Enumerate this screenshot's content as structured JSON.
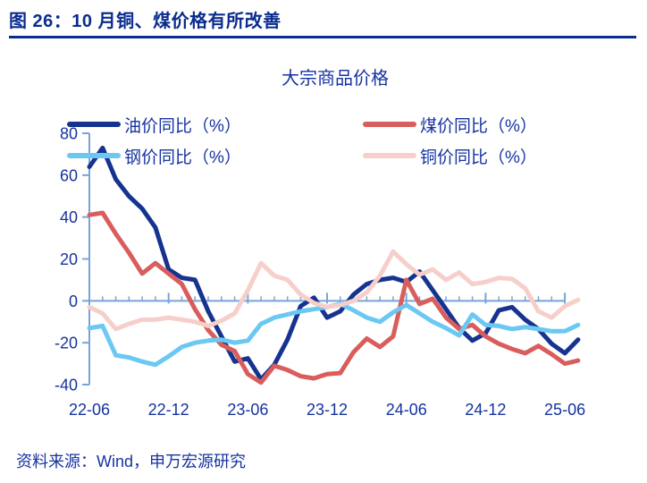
{
  "header": {
    "title": "图 26：10 月铜、煤价格有所改善"
  },
  "footer": {
    "source": "资料来源：Wind，申万宏源研究"
  },
  "colors": {
    "header_text": "#0a2c8f",
    "body_text": "#1633a0",
    "axis": "#78a4d9"
  },
  "chart_data": {
    "type": "line",
    "title": "大宗商品价格",
    "xlabel": "",
    "ylabel": "",
    "ylim": [
      -40,
      80
    ],
    "y_ticks": [
      80,
      60,
      40,
      20,
      0,
      -20,
      -40
    ],
    "grid": false,
    "legend_position": "top",
    "x_tick_labels": [
      "22-06",
      "22-12",
      "23-06",
      "23-12",
      "24-06",
      "24-12",
      "25-06"
    ],
    "x_tick_every": 6,
    "x": [
      "22-06",
      "22-07",
      "22-08",
      "22-09",
      "22-10",
      "22-11",
      "22-12",
      "23-01",
      "23-02",
      "23-03",
      "23-04",
      "23-05",
      "23-06",
      "23-07",
      "23-08",
      "23-09",
      "23-10",
      "23-11",
      "23-12",
      "24-01",
      "24-02",
      "24-03",
      "24-04",
      "24-05",
      "24-06",
      "24-07",
      "24-08",
      "24-09",
      "24-10",
      "24-11",
      "24-12",
      "25-01",
      "25-02",
      "25-03",
      "25-04",
      "25-05",
      "25-06",
      "25-07"
    ],
    "series": [
      {
        "name": "油价同比（%）",
        "color": "#15338f",
        "values": [
          64,
          73,
          58,
          50,
          44,
          35,
          15,
          11,
          10,
          -5,
          -17,
          -29,
          -27.5,
          -37.5,
          -30.5,
          -18.5,
          -2.5,
          1.5,
          -8,
          -5,
          3,
          8,
          10,
          11,
          9,
          14,
          5,
          -4,
          -13,
          -19,
          -15.5,
          -4.5,
          -3,
          -9,
          -13.5,
          -20.5,
          -25,
          -18.5
        ]
      },
      {
        "name": "煤价同比（%）",
        "color": "#d95d5d",
        "values": [
          41,
          42,
          32,
          23,
          13,
          18,
          13,
          8,
          -4,
          -14,
          -21,
          -24,
          -35,
          -39,
          -31,
          -33,
          -36,
          -37,
          -35,
          -34.5,
          -24.5,
          -18,
          -22,
          -17,
          10,
          -1.5,
          1,
          -8,
          -13.5,
          -11.5,
          -17,
          -20.5,
          -23,
          -25,
          -21.5,
          -25.5,
          -30,
          -28.5
        ]
      },
      {
        "name": "钢价同比（%）",
        "color": "#6ac8f2",
        "values": [
          -13,
          -12,
          -26,
          -27,
          -29,
          -30.5,
          -26.5,
          -22,
          -20,
          -19,
          -18.5,
          -20,
          -19,
          -11,
          -8,
          -6.5,
          -5,
          -4,
          -3,
          -1.5,
          -4.5,
          -8,
          -10,
          -5.5,
          -2,
          -6,
          -10,
          -13,
          -16.5,
          -6.5,
          -11.5,
          -12,
          -13.5,
          -12.5,
          -13.5,
          -14.5,
          -14.5,
          -11.5
        ]
      },
      {
        "name": "铜价同比（%）",
        "color": "#f6cfca",
        "values": [
          -3,
          -6,
          -13.5,
          -11,
          -9,
          -9,
          -8,
          -9,
          -10,
          -12,
          -9.5,
          -6,
          5,
          18,
          12,
          10,
          3,
          -1,
          -3,
          -2,
          0,
          4,
          12,
          23.5,
          17.5,
          12.5,
          15,
          10,
          13.5,
          8,
          9,
          11,
          10.5,
          6,
          -5,
          -8,
          -2.5,
          0.5
        ]
      }
    ]
  }
}
